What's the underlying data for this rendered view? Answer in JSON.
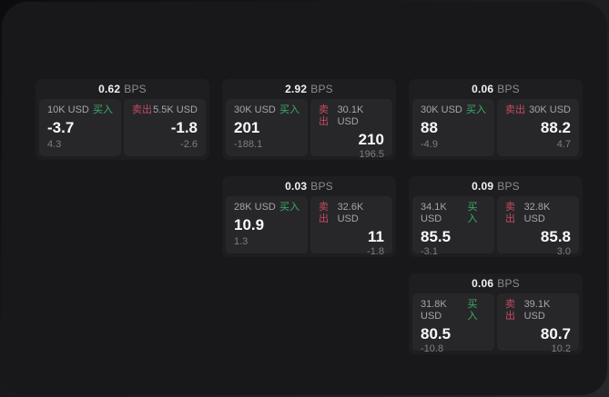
{
  "app": {
    "bps_unit": "BPS",
    "buy_label": "买入",
    "sell_label": "卖出"
  },
  "colors": {
    "buy_green": "#3cae68",
    "sell_red": "#c74a62",
    "panel_bg": "#18181a",
    "card_bg": "#1e1e21",
    "subpanel_bg": "#27272a"
  },
  "cards": [
    {
      "bps": "0.62",
      "buy_size": "10K USD",
      "buy_price": "-3.7",
      "buy_delta": "4.3",
      "sell_size": "5.5K USD",
      "sell_price": "-1.8",
      "sell_delta": "-2.6"
    },
    {
      "bps": "2.92",
      "buy_size": "30K USD",
      "buy_price": "201",
      "buy_delta": "-188.1",
      "sell_size": "30.1K USD",
      "sell_price": "210",
      "sell_delta": "196.5"
    },
    {
      "bps": "0.06",
      "buy_size": "30K USD",
      "buy_price": "88",
      "buy_delta": "-4.9",
      "sell_size": "30K USD",
      "sell_price": "88.2",
      "sell_delta": "4.7"
    },
    {
      "bps": "0.03",
      "buy_size": "28K USD",
      "buy_price": "10.9",
      "buy_delta": "1.3",
      "sell_size": "32.6K USD",
      "sell_price": "11",
      "sell_delta": "-1.8"
    },
    {
      "bps": "0.09",
      "buy_size": "34.1K USD",
      "buy_price": "85.5",
      "buy_delta": "-3.1",
      "sell_size": "32.8K USD",
      "sell_price": "85.8",
      "sell_delta": "3.0"
    },
    {
      "bps": "0.06",
      "buy_size": "31.8K USD",
      "buy_price": "80.5",
      "buy_delta": "-10.8",
      "sell_size": "39.1K USD",
      "sell_price": "80.7",
      "sell_delta": "10.2"
    }
  ]
}
